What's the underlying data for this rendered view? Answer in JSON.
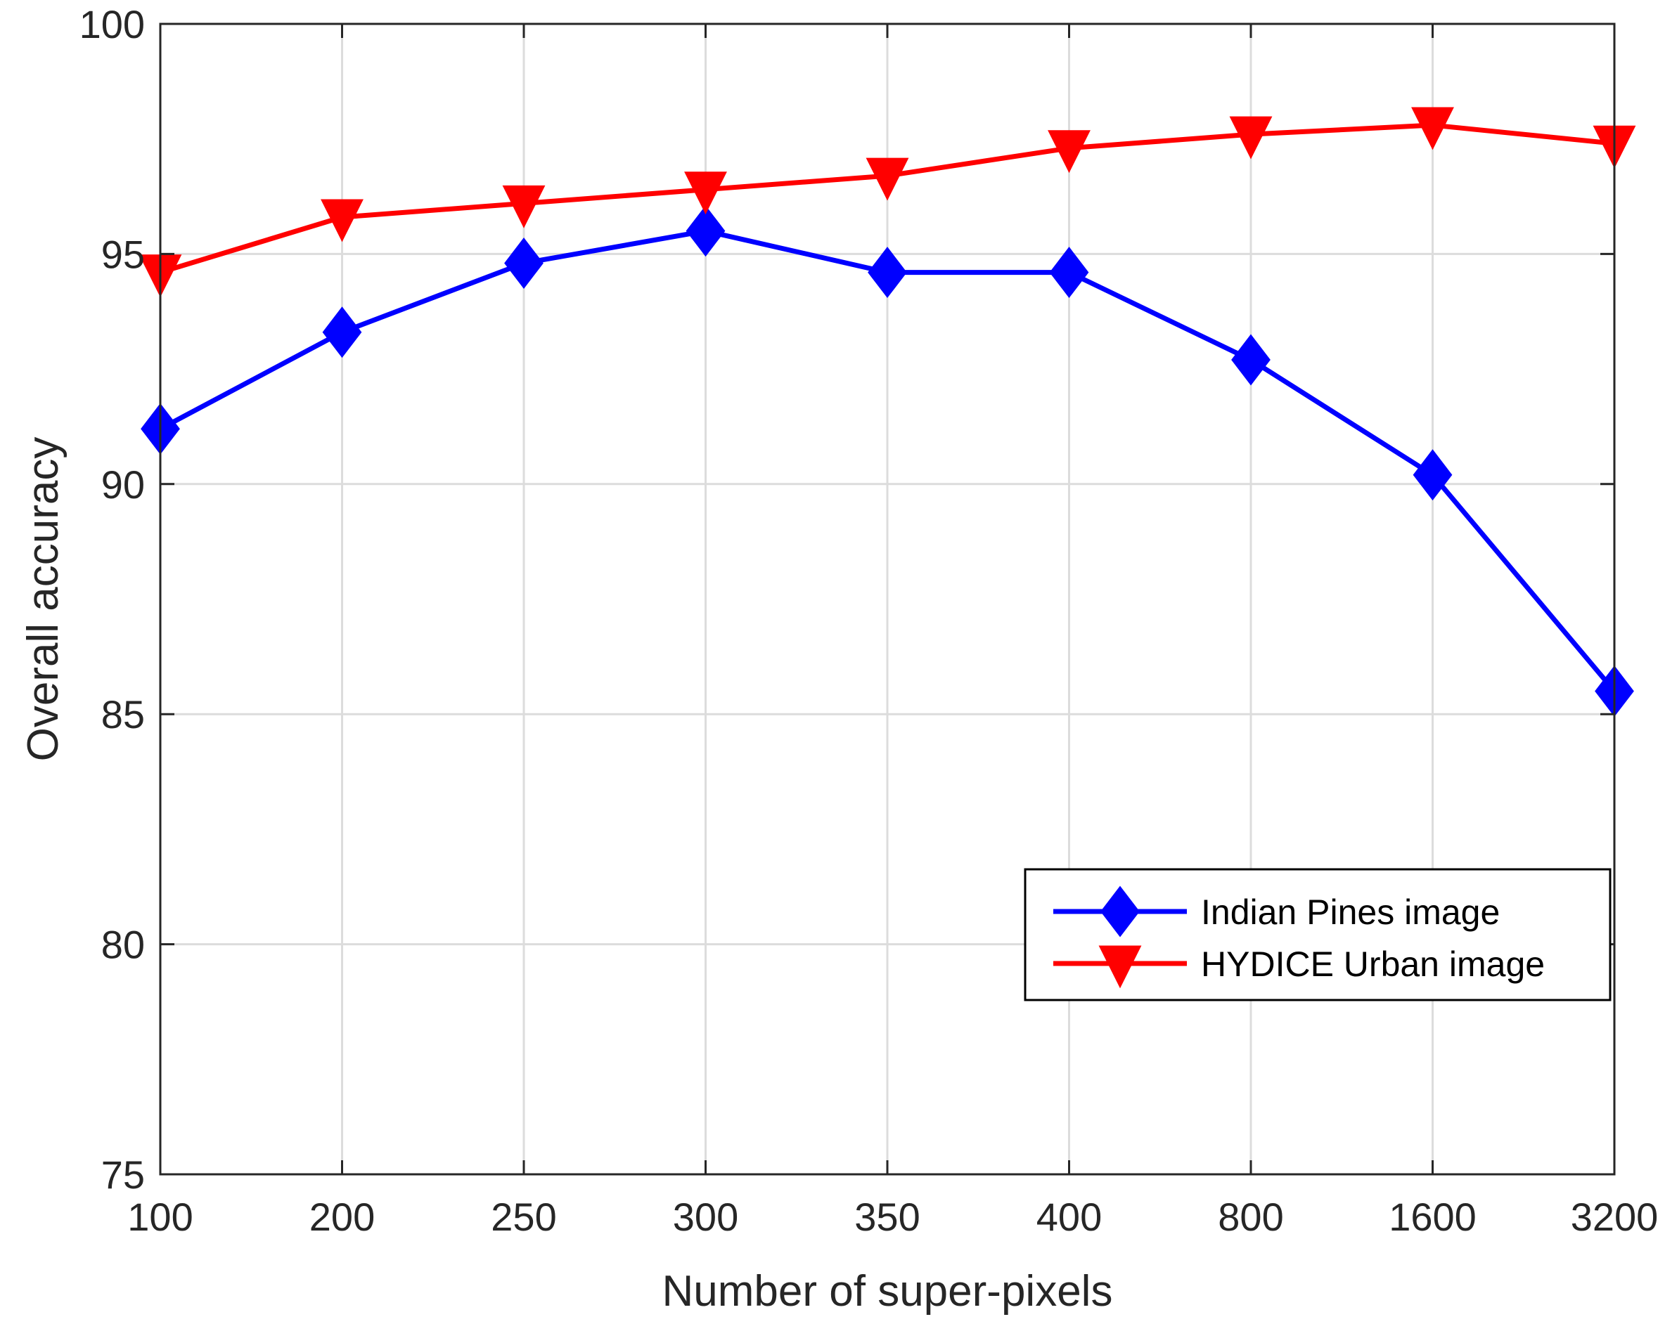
{
  "chart_data": {
    "type": "line",
    "title": "",
    "xlabel": "Number of super-pixels",
    "ylabel": "Overall accuracy",
    "categories": [
      "100",
      "200",
      "250",
      "300",
      "350",
      "400",
      "800",
      "1600",
      "3200"
    ],
    "ylim": [
      75,
      100
    ],
    "yticks": [
      "75",
      "80",
      "85",
      "90",
      "95",
      "100"
    ],
    "grid": true,
    "legend_position": "center-right",
    "series": [
      {
        "name": "Indian Pines image",
        "values": [
          91.2,
          93.3,
          94.8,
          95.5,
          94.6,
          94.6,
          92.7,
          90.2,
          85.5
        ],
        "color": "#0000ff",
        "marker": "diamond"
      },
      {
        "name": "HYDICE Urban image",
        "values": [
          94.6,
          95.8,
          96.1,
          96.4,
          96.7,
          97.3,
          97.6,
          97.8,
          97.4
        ],
        "color": "#ff0000",
        "marker": "triangle-down"
      }
    ]
  }
}
